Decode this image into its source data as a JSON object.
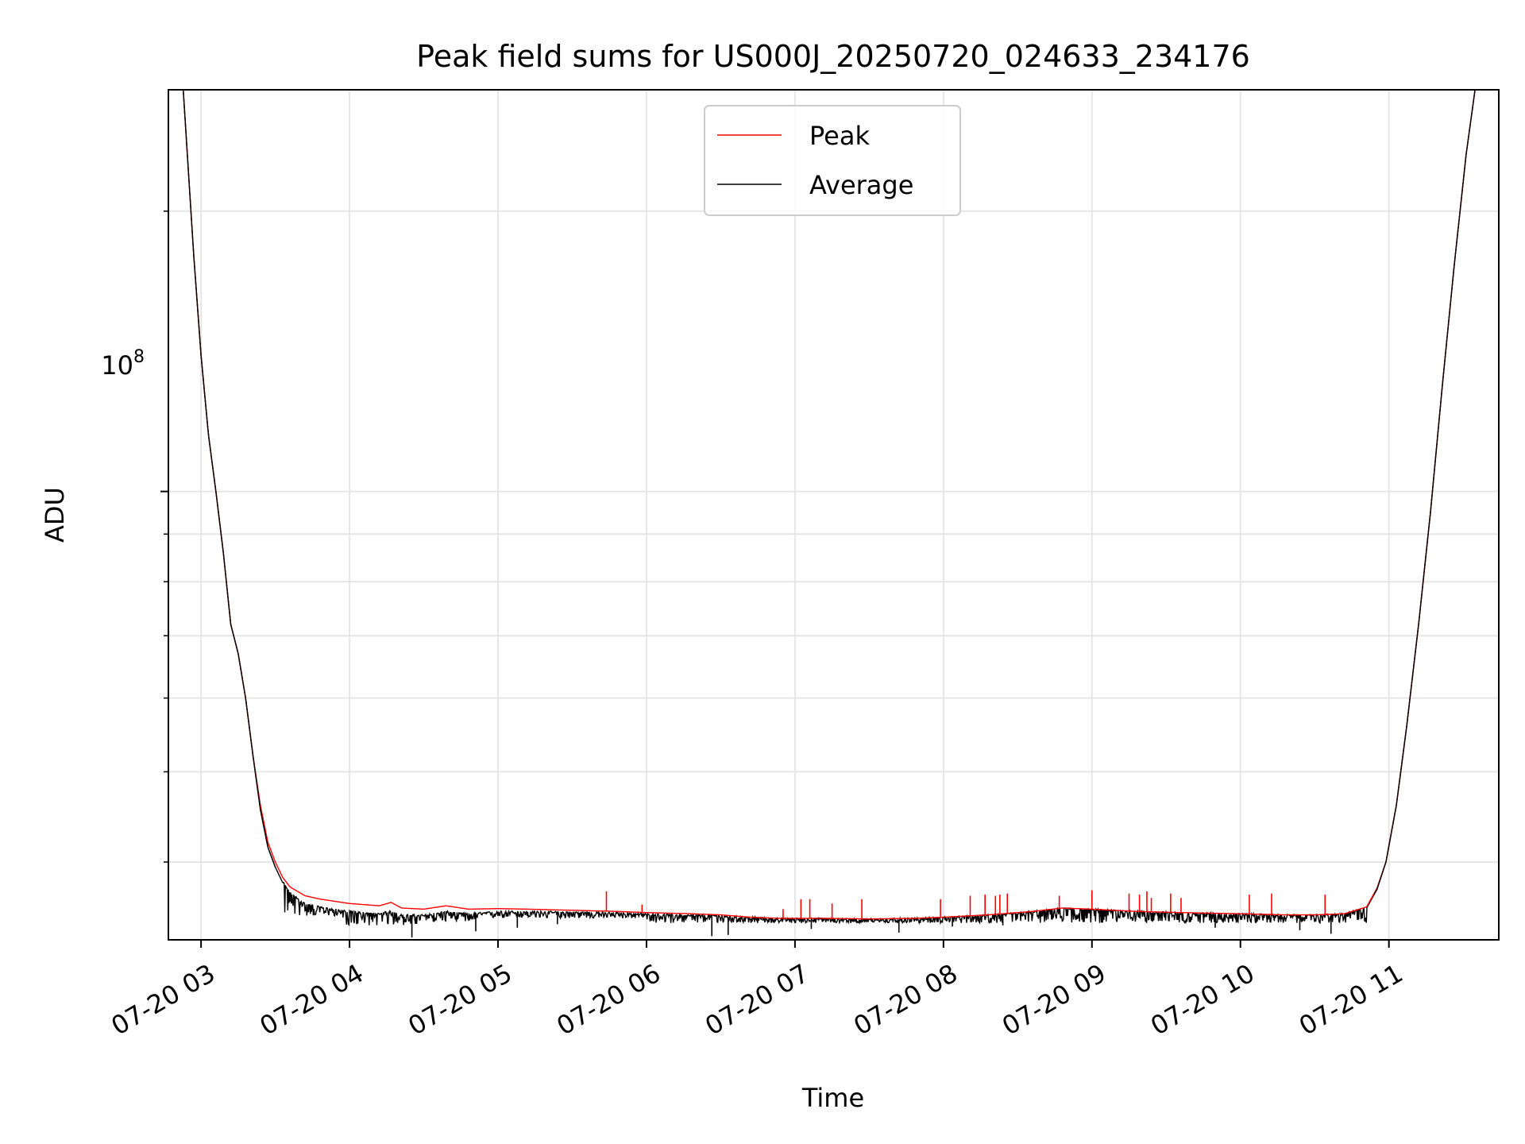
{
  "chart_data": {
    "type": "line",
    "title": "Peak field sums for US000J_20250720_024633_234176",
    "xlabel": "Time",
    "ylabel": "ADU",
    "yscale": "log",
    "grid": true,
    "legend_position": "upper center",
    "x_ticks": [
      {
        "value": 3,
        "label": "07-20 03"
      },
      {
        "value": 4,
        "label": "07-20 04"
      },
      {
        "value": 5,
        "label": "07-20 05"
      },
      {
        "value": 6,
        "label": "07-20 06"
      },
      {
        "value": 7,
        "label": "07-20 07"
      },
      {
        "value": 8,
        "label": "07-20 08"
      },
      {
        "value": 9,
        "label": "07-20 09"
      },
      {
        "value": 10,
        "label": "07-20 10"
      },
      {
        "value": 11,
        "label": "07-20 11"
      }
    ],
    "y_tick_base": "10",
    "y_tick_exponent": "8",
    "xlim": [
      2.78,
      11.74
    ],
    "ylim": [
      33000000,
      270000000
    ],
    "series": [
      {
        "name": "Peak",
        "color": "#ff0000",
        "points": [
          [
            2.78,
            270000000
          ],
          [
            2.88,
            270000000
          ],
          [
            2.95,
            180000000
          ],
          [
            3.0,
            140000000
          ],
          [
            3.05,
            115000000
          ],
          [
            3.1,
            100000000
          ],
          [
            3.15,
            86000000
          ],
          [
            3.2,
            72000000
          ],
          [
            3.25,
            67000000
          ],
          [
            3.3,
            60000000
          ],
          [
            3.35,
            52000000
          ],
          [
            3.4,
            46000000
          ],
          [
            3.45,
            42000000
          ],
          [
            3.5,
            40000000
          ],
          [
            3.55,
            38500000
          ],
          [
            3.6,
            37600000
          ],
          [
            3.7,
            36800000
          ],
          [
            3.8,
            36500000
          ],
          [
            3.9,
            36300000
          ],
          [
            4.0,
            36100000
          ],
          [
            4.1,
            36000000
          ],
          [
            4.2,
            35900000
          ],
          [
            4.28,
            36200000
          ],
          [
            4.35,
            35700000
          ],
          [
            4.5,
            35600000
          ],
          [
            4.65,
            35900000
          ],
          [
            4.8,
            35600000
          ],
          [
            5.0,
            35650000
          ],
          [
            5.2,
            35600000
          ],
          [
            5.5,
            35500000
          ],
          [
            5.8,
            35400000
          ],
          [
            6.0,
            35300000
          ],
          [
            6.3,
            35200000
          ],
          [
            6.5,
            35100000
          ],
          [
            6.7,
            34900000
          ],
          [
            6.9,
            34800000
          ],
          [
            7.2,
            34800000
          ],
          [
            7.5,
            34750000
          ],
          [
            7.8,
            34800000
          ],
          [
            8.0,
            34900000
          ],
          [
            8.3,
            35100000
          ],
          [
            8.6,
            35400000
          ],
          [
            8.8,
            35700000
          ],
          [
            9.0,
            35600000
          ],
          [
            9.3,
            35400000
          ],
          [
            9.6,
            35300000
          ],
          [
            10.0,
            35200000
          ],
          [
            10.3,
            35100000
          ],
          [
            10.5,
            35100000
          ],
          [
            10.7,
            35200000
          ],
          [
            10.85,
            35800000
          ],
          [
            10.92,
            37500000
          ],
          [
            10.98,
            40000000
          ],
          [
            11.05,
            46000000
          ],
          [
            11.12,
            56000000
          ],
          [
            11.2,
            72000000
          ],
          [
            11.28,
            95000000
          ],
          [
            11.36,
            130000000
          ],
          [
            11.44,
            175000000
          ],
          [
            11.52,
            230000000
          ],
          [
            11.58,
            270000000
          ],
          [
            11.74,
            270000000
          ]
        ],
        "spikes": [
          [
            5.73,
            37200000
          ],
          [
            5.97,
            36000000
          ],
          [
            6.92,
            35600000
          ],
          [
            7.04,
            36500000
          ],
          [
            7.1,
            36500000
          ],
          [
            7.25,
            36100000
          ],
          [
            7.45,
            36500000
          ],
          [
            7.98,
            36500000
          ],
          [
            8.18,
            36800000
          ],
          [
            8.28,
            36900000
          ],
          [
            8.35,
            36800000
          ],
          [
            8.38,
            36900000
          ],
          [
            8.43,
            37000000
          ],
          [
            8.78,
            36800000
          ],
          [
            9.0,
            37300000
          ],
          [
            9.25,
            37000000
          ],
          [
            9.32,
            36900000
          ],
          [
            9.37,
            37200000
          ],
          [
            9.4,
            36600000
          ],
          [
            9.53,
            37000000
          ],
          [
            9.6,
            36600000
          ],
          [
            10.06,
            36900000
          ],
          [
            10.21,
            37000000
          ],
          [
            10.57,
            36900000
          ]
        ]
      },
      {
        "name": "Average",
        "color": "#000000",
        "points": [
          [
            2.78,
            270000000
          ],
          [
            2.88,
            270000000
          ],
          [
            2.95,
            180000000
          ],
          [
            3.0,
            140000000
          ],
          [
            3.05,
            115000000
          ],
          [
            3.1,
            100000000
          ],
          [
            3.15,
            86000000
          ],
          [
            3.2,
            72000000
          ],
          [
            3.25,
            67000000
          ],
          [
            3.3,
            60000000
          ],
          [
            3.35,
            52000000
          ],
          [
            3.4,
            45500000
          ],
          [
            3.45,
            41500000
          ],
          [
            3.5,
            39500000
          ],
          [
            3.55,
            38000000
          ],
          [
            3.6,
            37000000
          ],
          [
            3.7,
            36000000
          ],
          [
            3.8,
            35700000
          ],
          [
            3.9,
            35500000
          ],
          [
            4.0,
            35300000
          ],
          [
            4.1,
            35200000
          ],
          [
            4.2,
            35100000
          ],
          [
            4.28,
            35400000
          ],
          [
            4.35,
            35000000
          ],
          [
            4.5,
            35000000
          ],
          [
            4.65,
            35300000
          ],
          [
            4.8,
            35100000
          ],
          [
            5.0,
            35300000
          ],
          [
            5.2,
            35300000
          ],
          [
            5.5,
            35250000
          ],
          [
            5.8,
            35200000
          ],
          [
            6.0,
            35100000
          ],
          [
            6.3,
            35000000
          ],
          [
            6.5,
            34950000
          ],
          [
            6.7,
            34800000
          ],
          [
            6.9,
            34700000
          ],
          [
            7.2,
            34700000
          ],
          [
            7.5,
            34650000
          ],
          [
            7.8,
            34700000
          ],
          [
            8.0,
            34800000
          ],
          [
            8.3,
            35000000
          ],
          [
            8.6,
            35300000
          ],
          [
            8.8,
            35600000
          ],
          [
            9.0,
            35500000
          ],
          [
            9.3,
            35300000
          ],
          [
            9.6,
            35200000
          ],
          [
            10.0,
            35100000
          ],
          [
            10.3,
            35000000
          ],
          [
            10.5,
            35000000
          ],
          [
            10.7,
            35100000
          ],
          [
            10.85,
            35700000
          ],
          [
            10.92,
            37400000
          ],
          [
            10.98,
            40000000
          ],
          [
            11.05,
            46000000
          ],
          [
            11.12,
            56000000
          ],
          [
            11.2,
            72000000
          ],
          [
            11.28,
            95000000
          ],
          [
            11.36,
            130000000
          ],
          [
            11.44,
            175000000
          ],
          [
            11.52,
            230000000
          ],
          [
            11.58,
            270000000
          ],
          [
            11.74,
            270000000
          ]
        ],
        "noise_bands": [
          [
            3.55,
            3.95,
            35000000
          ],
          [
            3.95,
            4.5,
            34200000
          ],
          [
            4.5,
            4.95,
            34500000
          ],
          [
            4.95,
            6.0,
            34800000
          ],
          [
            6.0,
            10.85,
            34400000
          ]
        ],
        "dips": [
          [
            4.42,
            33200000
          ],
          [
            4.85,
            33700000
          ],
          [
            5.13,
            34000000
          ],
          [
            5.4,
            34300000
          ],
          [
            6.44,
            33300000
          ],
          [
            6.55,
            33400000
          ],
          [
            7.11,
            33900000
          ],
          [
            7.7,
            33600000
          ],
          [
            8.06,
            34100000
          ],
          [
            8.4,
            34200000
          ],
          [
            9.83,
            34000000
          ],
          [
            10.61,
            33500000
          ],
          [
            10.4,
            33800000
          ]
        ]
      }
    ]
  }
}
